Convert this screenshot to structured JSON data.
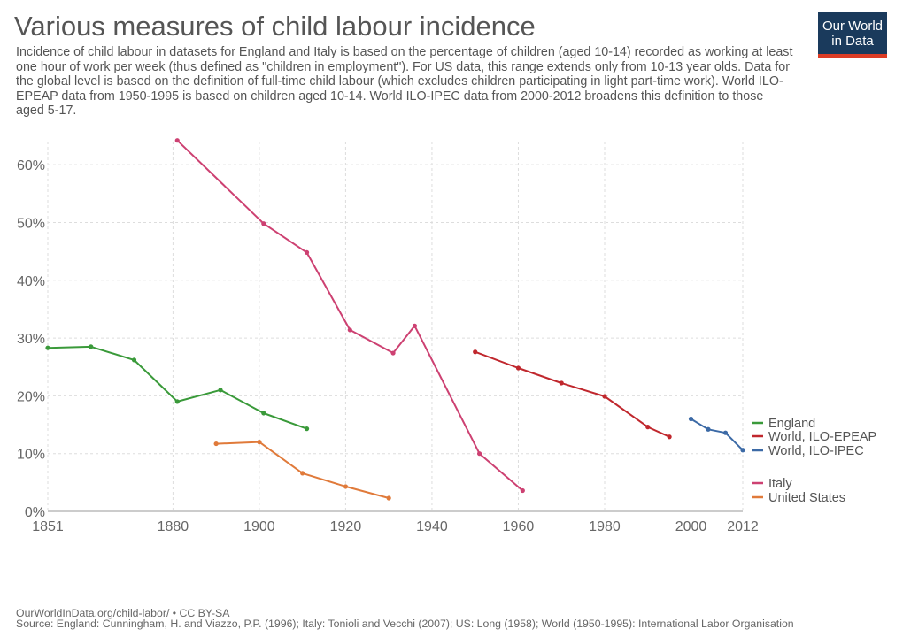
{
  "header": {
    "title": "Various measures of child labour incidence",
    "subtitle": "Incidence of child labour in datasets for England and Italy is based on the percentage of children (aged 10-14) recorded as working at least one hour of work per week (thus defined as \"children in employment\"). For US data, this range extends only from 10-13 year olds. Data for the global level is based on the definition of full-time child labour (which excludes children participating in light part-time work). World ILO-EPEAP data from 1950-1995 is based on children aged 10-14. World ILO-IPEC data from 2000-2012 broadens this definition to those aged 5-17.",
    "logo_line1": "Our World",
    "logo_line2": "in Data"
  },
  "footer": {
    "url": "OurWorldInData.org/child-labor/ • CC BY-SA",
    "source": "Source: England: Cunningham, H. and Viazzo, P.P. (1996); Italy: Tonioli and Vecchi (2007); US: Long (1958); World (1950-1995): International Labor Organisation"
  },
  "chart_data": {
    "type": "line",
    "title": "Various measures of child labour incidence",
    "xlabel": "",
    "ylabel": "",
    "xlim": [
      1851,
      2012
    ],
    "ylim": [
      0,
      64
    ],
    "x_ticks": [
      1851,
      1880,
      1900,
      1920,
      1940,
      1960,
      1980,
      2000,
      2012
    ],
    "x_tick_labels": [
      "1851",
      "1880",
      "1900",
      "1920",
      "1940",
      "1960",
      "1980",
      "2000",
      "2012"
    ],
    "y_ticks": [
      0,
      10,
      20,
      30,
      40,
      50,
      60
    ],
    "y_tick_labels": [
      "0%",
      "10%",
      "20%",
      "30%",
      "40%",
      "50%",
      "60%"
    ],
    "grid": true,
    "legend_position": "right",
    "series": [
      {
        "name": "England",
        "color": "#3a9a3a",
        "x": [
          1851,
          1861,
          1871,
          1881,
          1891,
          1901,
          1911
        ],
        "y": [
          28.3,
          28.5,
          26.2,
          19.0,
          21.0,
          17.0,
          14.3
        ]
      },
      {
        "name": "World, ILO-EPEAP",
        "color": "#c0272d",
        "x": [
          1950,
          1960,
          1970,
          1980,
          1990,
          1995
        ],
        "y": [
          27.6,
          24.8,
          22.2,
          19.9,
          14.6,
          12.9
        ]
      },
      {
        "name": "World, ILO-IPEC",
        "color": "#3c6aa6",
        "x": [
          2000,
          2004,
          2008,
          2012
        ],
        "y": [
          16.0,
          14.2,
          13.6,
          10.6
        ]
      },
      {
        "name": "Italy",
        "color": "#cd4172",
        "x": [
          1881,
          1901,
          1911,
          1921,
          1931,
          1936,
          1951,
          1961
        ],
        "y": [
          64.2,
          49.8,
          44.8,
          31.4,
          27.4,
          32.1,
          10.0,
          3.6
        ]
      },
      {
        "name": "United States",
        "color": "#e07a3a",
        "x": [
          1890,
          1900,
          1910,
          1920,
          1930
        ],
        "y": [
          11.7,
          12.0,
          6.6,
          4.3,
          2.3
        ]
      }
    ]
  }
}
